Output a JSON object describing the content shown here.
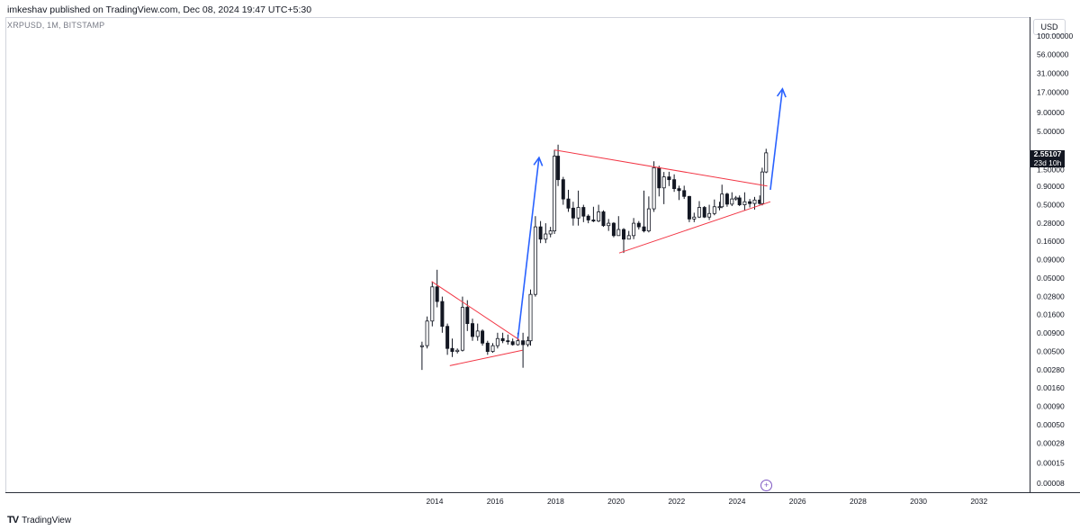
{
  "header": {
    "published_line": "imkeshav published on TradingView.com, Dec 08, 2024 19:47 UTC+5:30"
  },
  "symbol": {
    "label": "XRPUSD, 1M, BITSTAMP"
  },
  "currency": "USD",
  "footer": {
    "brand": "TradingView",
    "logo": "tv-logo-icon"
  },
  "price_tag": {
    "price": "2.55107",
    "countdown": "23d 10h"
  },
  "colors": {
    "up": "#131722",
    "down": "#131722",
    "trendline": "#f23645",
    "arrow": "#2962ff",
    "axis": "#2a2e39"
  },
  "chart_data": {
    "type": "candlestick",
    "title": "",
    "scale": "log",
    "ylim": [
      8e-05,
      100
    ],
    "xlim": [
      2012.0,
      2034.5
    ],
    "y_ticks": [
      "100.00000",
      "56.00000",
      "31.00000",
      "17.00000",
      "9.00000",
      "5.00000",
      "2.55107",
      "1.50000",
      "0.90000",
      "0.50000",
      "0.28000",
      "0.16000",
      "0.09000",
      "0.05000",
      "0.02800",
      "0.01600",
      "0.00900",
      "0.00500",
      "0.00280",
      "0.00160",
      "0.00090",
      "0.00050",
      "0.00028",
      "0.00015",
      "0.00008"
    ],
    "y_tick_values": [
      100,
      56,
      31,
      17,
      9,
      5,
      2.55107,
      1.5,
      0.9,
      0.5,
      0.28,
      0.16,
      0.09,
      0.05,
      0.028,
      0.016,
      0.009,
      0.005,
      0.0028,
      0.0016,
      0.0009,
      0.0005,
      0.00028,
      0.00015,
      8e-05
    ],
    "x_ticks": [
      "2014",
      "2016",
      "2018",
      "2020",
      "2022",
      "2024",
      "2026",
      "2028",
      "2030",
      "2032"
    ],
    "x_tick_values": [
      2014,
      2016,
      2018,
      2020,
      2022,
      2024,
      2026,
      2028,
      2030,
      2032
    ],
    "series": [
      {
        "name": "XRPUSD",
        "points": [
          {
            "t": 2013.58,
            "o": 0.0058,
            "h": 0.0068,
            "l": 0.0028,
            "c": 0.006
          },
          {
            "t": 2013.75,
            "o": 0.006,
            "h": 0.015,
            "l": 0.0055,
            "c": 0.013
          },
          {
            "t": 2013.92,
            "o": 0.013,
            "h": 0.045,
            "l": 0.011,
            "c": 0.038
          },
          {
            "t": 2014.08,
            "o": 0.038,
            "h": 0.065,
            "l": 0.02,
            "c": 0.024
          },
          {
            "t": 2014.25,
            "o": 0.024,
            "h": 0.028,
            "l": 0.009,
            "c": 0.011
          },
          {
            "t": 2014.42,
            "o": 0.011,
            "h": 0.012,
            "l": 0.0045,
            "c": 0.0055
          },
          {
            "t": 2014.58,
            "o": 0.0055,
            "h": 0.0075,
            "l": 0.0042,
            "c": 0.005
          },
          {
            "t": 2014.75,
            "o": 0.005,
            "h": 0.0055,
            "l": 0.0047,
            "c": 0.0052
          },
          {
            "t": 2014.92,
            "o": 0.0052,
            "h": 0.028,
            "l": 0.005,
            "c": 0.02
          },
          {
            "t": 2015.08,
            "o": 0.02,
            "h": 0.025,
            "l": 0.0095,
            "c": 0.012
          },
          {
            "t": 2015.25,
            "o": 0.012,
            "h": 0.014,
            "l": 0.007,
            "c": 0.008
          },
          {
            "t": 2015.42,
            "o": 0.008,
            "h": 0.012,
            "l": 0.007,
            "c": 0.0095
          },
          {
            "t": 2015.58,
            "o": 0.0095,
            "h": 0.01,
            "l": 0.006,
            "c": 0.0065
          },
          {
            "t": 2015.75,
            "o": 0.0065,
            "h": 0.007,
            "l": 0.0045,
            "c": 0.005
          },
          {
            "t": 2015.92,
            "o": 0.005,
            "h": 0.0065,
            "l": 0.0048,
            "c": 0.006
          },
          {
            "t": 2016.08,
            "o": 0.006,
            "h": 0.009,
            "l": 0.0055,
            "c": 0.0075
          },
          {
            "t": 2016.25,
            "o": 0.0075,
            "h": 0.009,
            "l": 0.0065,
            "c": 0.007
          },
          {
            "t": 2016.42,
            "o": 0.007,
            "h": 0.0085,
            "l": 0.0062,
            "c": 0.0068
          },
          {
            "t": 2016.58,
            "o": 0.0068,
            "h": 0.0075,
            "l": 0.006,
            "c": 0.0062
          },
          {
            "t": 2016.75,
            "o": 0.0062,
            "h": 0.009,
            "l": 0.006,
            "c": 0.007
          },
          {
            "t": 2016.92,
            "o": 0.007,
            "h": 0.009,
            "l": 0.003,
            "c": 0.0062
          },
          {
            "t": 2017.08,
            "o": 0.0062,
            "h": 0.008,
            "l": 0.0058,
            "c": 0.007
          },
          {
            "t": 2017.17,
            "o": 0.007,
            "h": 0.035,
            "l": 0.006,
            "c": 0.03
          },
          {
            "t": 2017.33,
            "o": 0.03,
            "h": 0.35,
            "l": 0.028,
            "c": 0.25
          },
          {
            "t": 2017.5,
            "o": 0.25,
            "h": 0.3,
            "l": 0.15,
            "c": 0.17
          },
          {
            "t": 2017.67,
            "o": 0.17,
            "h": 0.28,
            "l": 0.15,
            "c": 0.2
          },
          {
            "t": 2017.83,
            "o": 0.2,
            "h": 0.25,
            "l": 0.18,
            "c": 0.22
          },
          {
            "t": 2017.96,
            "o": 0.22,
            "h": 2.8,
            "l": 0.2,
            "c": 2.3
          },
          {
            "t": 2018.08,
            "o": 2.3,
            "h": 3.3,
            "l": 0.9,
            "c": 1.1
          },
          {
            "t": 2018.25,
            "o": 1.1,
            "h": 1.2,
            "l": 0.5,
            "c": 0.6
          },
          {
            "t": 2018.42,
            "o": 0.6,
            "h": 0.8,
            "l": 0.4,
            "c": 0.45
          },
          {
            "t": 2018.58,
            "o": 0.45,
            "h": 0.55,
            "l": 0.26,
            "c": 0.33
          },
          {
            "t": 2018.75,
            "o": 0.33,
            "h": 0.78,
            "l": 0.26,
            "c": 0.46
          },
          {
            "t": 2018.92,
            "o": 0.46,
            "h": 0.5,
            "l": 0.29,
            "c": 0.35
          },
          {
            "t": 2019.08,
            "o": 0.35,
            "h": 0.37,
            "l": 0.28,
            "c": 0.31
          },
          {
            "t": 2019.25,
            "o": 0.31,
            "h": 0.47,
            "l": 0.29,
            "c": 0.3
          },
          {
            "t": 2019.42,
            "o": 0.3,
            "h": 0.5,
            "l": 0.29,
            "c": 0.4
          },
          {
            "t": 2019.58,
            "o": 0.4,
            "h": 0.42,
            "l": 0.25,
            "c": 0.26
          },
          {
            "t": 2019.75,
            "o": 0.26,
            "h": 0.32,
            "l": 0.22,
            "c": 0.28
          },
          {
            "t": 2019.92,
            "o": 0.28,
            "h": 0.29,
            "l": 0.18,
            "c": 0.19
          },
          {
            "t": 2020.08,
            "o": 0.19,
            "h": 0.35,
            "l": 0.19,
            "c": 0.23
          },
          {
            "t": 2020.25,
            "o": 0.23,
            "h": 0.24,
            "l": 0.11,
            "c": 0.17
          },
          {
            "t": 2020.42,
            "o": 0.17,
            "h": 0.22,
            "l": 0.17,
            "c": 0.19
          },
          {
            "t": 2020.58,
            "o": 0.19,
            "h": 0.33,
            "l": 0.17,
            "c": 0.28
          },
          {
            "t": 2020.75,
            "o": 0.28,
            "h": 0.3,
            "l": 0.23,
            "c": 0.25
          },
          {
            "t": 2020.92,
            "o": 0.25,
            "h": 0.78,
            "l": 0.21,
            "c": 0.22
          },
          {
            "t": 2021.08,
            "o": 0.22,
            "h": 0.65,
            "l": 0.21,
            "c": 0.44
          },
          {
            "t": 2021.25,
            "o": 0.44,
            "h": 1.96,
            "l": 0.4,
            "c": 1.6
          },
          {
            "t": 2021.42,
            "o": 1.6,
            "h": 1.7,
            "l": 0.65,
            "c": 0.85
          },
          {
            "t": 2021.58,
            "o": 0.85,
            "h": 1.4,
            "l": 0.51,
            "c": 1.2
          },
          {
            "t": 2021.75,
            "o": 1.2,
            "h": 1.41,
            "l": 0.9,
            "c": 1.1
          },
          {
            "t": 2021.92,
            "o": 1.1,
            "h": 1.3,
            "l": 0.75,
            "c": 0.83
          },
          {
            "t": 2022.08,
            "o": 0.83,
            "h": 0.91,
            "l": 0.58,
            "c": 0.78
          },
          {
            "t": 2022.25,
            "o": 0.78,
            "h": 0.91,
            "l": 0.6,
            "c": 0.65
          },
          {
            "t": 2022.42,
            "o": 0.65,
            "h": 0.66,
            "l": 0.29,
            "c": 0.32
          },
          {
            "t": 2022.58,
            "o": 0.32,
            "h": 0.39,
            "l": 0.29,
            "c": 0.34
          },
          {
            "t": 2022.75,
            "o": 0.34,
            "h": 0.56,
            "l": 0.33,
            "c": 0.46
          },
          {
            "t": 2022.92,
            "o": 0.46,
            "h": 0.48,
            "l": 0.33,
            "c": 0.34
          },
          {
            "t": 2023.08,
            "o": 0.34,
            "h": 0.5,
            "l": 0.31,
            "c": 0.38
          },
          {
            "t": 2023.25,
            "o": 0.38,
            "h": 0.59,
            "l": 0.36,
            "c": 0.47
          },
          {
            "t": 2023.42,
            "o": 0.47,
            "h": 0.55,
            "l": 0.42,
            "c": 0.47
          },
          {
            "t": 2023.5,
            "o": 0.47,
            "h": 0.94,
            "l": 0.45,
            "c": 0.7
          },
          {
            "t": 2023.67,
            "o": 0.7,
            "h": 0.73,
            "l": 0.47,
            "c": 0.51
          },
          {
            "t": 2023.83,
            "o": 0.51,
            "h": 0.74,
            "l": 0.48,
            "c": 0.6
          },
          {
            "t": 2023.96,
            "o": 0.6,
            "h": 0.66,
            "l": 0.57,
            "c": 0.62
          },
          {
            "t": 2024.08,
            "o": 0.62,
            "h": 0.67,
            "l": 0.48,
            "c": 0.5
          },
          {
            "t": 2024.25,
            "o": 0.5,
            "h": 0.74,
            "l": 0.42,
            "c": 0.55
          },
          {
            "t": 2024.42,
            "o": 0.55,
            "h": 0.6,
            "l": 0.46,
            "c": 0.52
          },
          {
            "t": 2024.58,
            "o": 0.52,
            "h": 0.64,
            "l": 0.43,
            "c": 0.58
          },
          {
            "t": 2024.75,
            "o": 0.58,
            "h": 0.67,
            "l": 0.5,
            "c": 0.52
          },
          {
            "t": 2024.83,
            "o": 0.52,
            "h": 1.6,
            "l": 0.49,
            "c": 1.4
          },
          {
            "t": 2024.96,
            "o": 1.4,
            "h": 2.9,
            "l": 1.35,
            "c": 2.5511
          }
        ]
      }
    ],
    "annotations": {
      "trendlines": [
        {
          "from": [
            2013.9,
            0.045
          ],
          "to": [
            2016.8,
            0.0072
          ]
        },
        {
          "from": [
            2014.5,
            0.0032
          ],
          "to": [
            2016.9,
            0.0052
          ]
        },
        {
          "from": [
            2017.95,
            2.8
          ],
          "to": [
            2025.0,
            0.9
          ]
        },
        {
          "from": [
            2020.1,
            0.11
          ],
          "to": [
            2025.1,
            0.55
          ]
        }
      ],
      "arrows": [
        {
          "from": [
            2016.75,
            0.0075
          ],
          "to": [
            2017.45,
            2.2
          ]
        },
        {
          "from": [
            2025.1,
            0.8
          ],
          "to": [
            2025.5,
            19.0
          ]
        }
      ]
    }
  }
}
